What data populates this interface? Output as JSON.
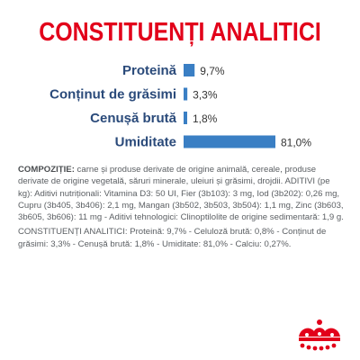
{
  "title": "CONSTITUENȚI ANALITICI",
  "colors": {
    "accent": "#e2001a",
    "bar": "#3a7fc4",
    "label": "#2a4a7a",
    "text": "#5b5f63"
  },
  "chart_data": {
    "type": "bar",
    "orientation": "horizontal",
    "categories": [
      "Proteină",
      "Conținut de grăsimi",
      "Cenușă brută",
      "Umiditate"
    ],
    "values": [
      9.7,
      3.3,
      1.8,
      81.0
    ],
    "value_labels": [
      "9,7%",
      "3,3%",
      "1,8%",
      "81,0%"
    ],
    "unit": "%",
    "xlim": [
      0,
      81.0
    ],
    "grid": false,
    "title": "CONSTITUENȚI ANALITICI"
  },
  "composition": {
    "label": "COMPOZIȚIE:",
    "text": " carne și produse derivate de origine animală, cereale, produse derivate de origine vegetală, săruri minerale, uleiuri și grăsimi, drojdii. ADITIVI (pe kg): Aditivi nutriționali: Vitamina D3: 50 UI, Fier (3b103): 3 mg, Iod (3b202): 0,26 mg, Cupru (3b405, 3b406): 2,1 mg, Mangan (3b502, 3b503, 3b504): 1,1 mg, Zinc (3b603, 3b605, 3b606): 11 mg - Aditivi tehnologici: Clinoptilolite de origine sedimentară: 1,9 g."
  },
  "analytical": {
    "text": "CONSTITUENȚI ANALITICI: Proteină: 9,7% - Celuloză brută: 0,8% - Conținut de grăsimi: 3,3% - Cenușă brută: 1,8% - Umiditate: 81,0% - Calciu: 0,27%."
  },
  "logo": {
    "icon": "crown-icon",
    "brand": "Royal Canin"
  }
}
